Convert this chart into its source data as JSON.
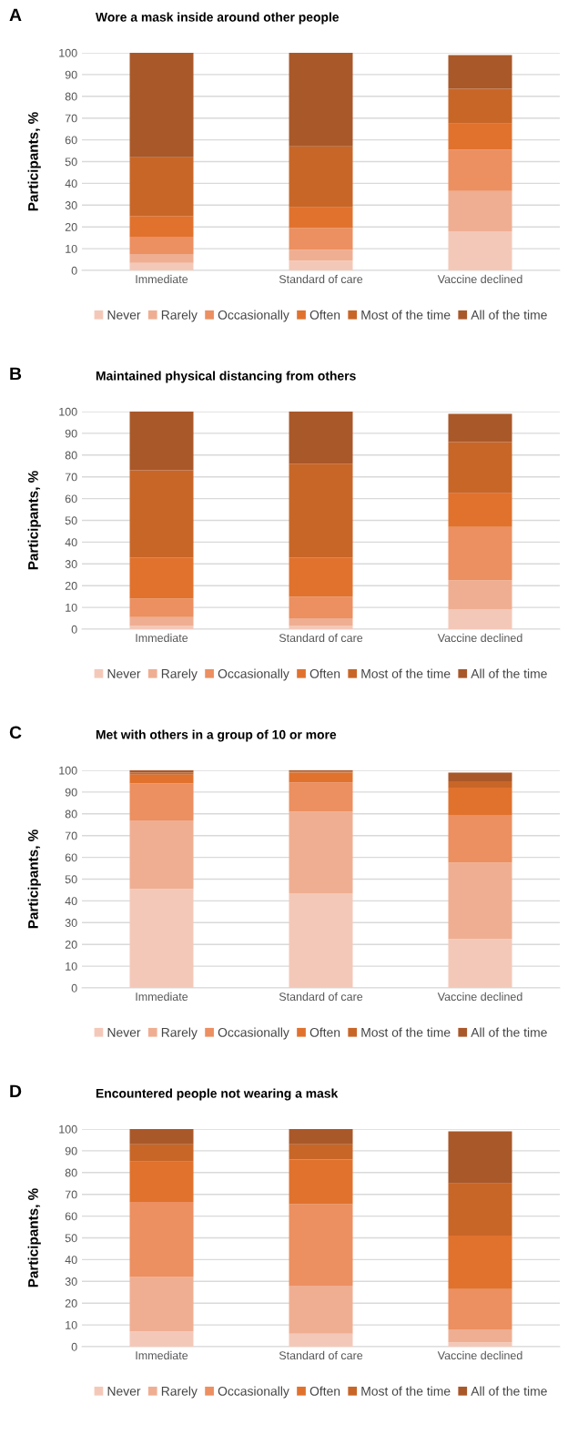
{
  "chart_data": [
    {
      "type": "bar",
      "stacked": true,
      "title": "Wore a mask inside around other people",
      "annotations": [
        "A"
      ],
      "ylabel": "Participants, %",
      "categories": [
        "Immediate",
        "Standard of care",
        "Vaccine declined"
      ],
      "ylim": [
        0,
        100
      ],
      "yticks": [
        0,
        10,
        20,
        30,
        40,
        50,
        60,
        70,
        80,
        90,
        100
      ],
      "grid": "y",
      "legend": "bottom",
      "series": [
        {
          "name": "Never",
          "color": "#f4c8b8",
          "values": [
            3.5,
            4.5,
            18
          ]
        },
        {
          "name": "Rarely",
          "color": "#efae92",
          "values": [
            4,
            5,
            18.5
          ]
        },
        {
          "name": "Occasionally",
          "color": "#ec8f61",
          "values": [
            8,
            10,
            19
          ]
        },
        {
          "name": "Often",
          "color": "#e0722e",
          "values": [
            9.5,
            9.5,
            12
          ]
        },
        {
          "name": "Most of the time",
          "color": "#c86628",
          "values": [
            27,
            28,
            16
          ]
        },
        {
          "name": "All of the time",
          "color": "#a9582a",
          "values": [
            48,
            43,
            15.5
          ]
        }
      ]
    },
    {
      "type": "bar",
      "stacked": true,
      "title": "Maintained physical distancing from others",
      "annotations": [
        "B"
      ],
      "ylabel": "Participants, %",
      "categories": [
        "Immediate",
        "Standard of care",
        "Vaccine declined"
      ],
      "ylim": [
        0,
        100
      ],
      "yticks": [
        0,
        10,
        20,
        30,
        40,
        50,
        60,
        70,
        80,
        90,
        100
      ],
      "grid": "y",
      "legend": "bottom",
      "series": [
        {
          "name": "Never",
          "color": "#f4c8b8",
          "values": [
            1.5,
            1.5,
            9
          ]
        },
        {
          "name": "Rarely",
          "color": "#efae92",
          "values": [
            4,
            3.5,
            13.5
          ]
        },
        {
          "name": "Occasionally",
          "color": "#ec8f61",
          "values": [
            8.5,
            10,
            24.5
          ]
        },
        {
          "name": "Often",
          "color": "#e0722e",
          "values": [
            19,
            18,
            15.5
          ]
        },
        {
          "name": "Most of the time",
          "color": "#c86628",
          "values": [
            40,
            43,
            23.5
          ]
        },
        {
          "name": "All of the time",
          "color": "#a9582a",
          "values": [
            27,
            24,
            13
          ]
        }
      ]
    },
    {
      "type": "bar",
      "stacked": true,
      "title": "Met with others in a group of 10 or more",
      "annotations": [
        "C"
      ],
      "ylabel": "Participants, %",
      "categories": [
        "Immediate",
        "Standard of care",
        "Vaccine declined"
      ],
      "ylim": [
        0,
        100
      ],
      "yticks": [
        0,
        10,
        20,
        30,
        40,
        50,
        60,
        70,
        80,
        90,
        100
      ],
      "grid": "y",
      "legend": "bottom",
      "series": [
        {
          "name": "Never",
          "color": "#f4c8b8",
          "values": [
            45.5,
            43.5,
            22.5
          ]
        },
        {
          "name": "Rarely",
          "color": "#efae92",
          "values": [
            31.5,
            37.5,
            35
          ]
        },
        {
          "name": "Occasionally",
          "color": "#ec8f61",
          "values": [
            17,
            13.5,
            22
          ]
        },
        {
          "name": "Often",
          "color": "#e0722e",
          "values": [
            4,
            4.5,
            12.5
          ]
        },
        {
          "name": "Most of the time",
          "color": "#c86628",
          "values": [
            1,
            0.5,
            3
          ]
        },
        {
          "name": "All of the time",
          "color": "#a9582a",
          "values": [
            1,
            0.5,
            4
          ]
        }
      ]
    },
    {
      "type": "bar",
      "stacked": true,
      "title": "Encountered people not wearing a mask",
      "annotations": [
        "D"
      ],
      "ylabel": "Participants, %",
      "categories": [
        "Immediate",
        "Standard of care",
        "Vaccine declined"
      ],
      "ylim": [
        0,
        100
      ],
      "yticks": [
        0,
        10,
        20,
        30,
        40,
        50,
        60,
        70,
        80,
        90,
        100
      ],
      "grid": "y",
      "legend": "bottom",
      "series": [
        {
          "name": "Never",
          "color": "#f4c8b8",
          "values": [
            7,
            6,
            2
          ]
        },
        {
          "name": "Rarely",
          "color": "#efae92",
          "values": [
            25,
            22,
            6
          ]
        },
        {
          "name": "Occasionally",
          "color": "#ec8f61",
          "values": [
            34.5,
            37.5,
            18.5
          ]
        },
        {
          "name": "Often",
          "color": "#e0722e",
          "values": [
            18.5,
            20.5,
            24.5
          ]
        },
        {
          "name": "Most of the time",
          "color": "#c86628",
          "values": [
            8,
            7,
            24
          ]
        },
        {
          "name": "All of the time",
          "color": "#a9582a",
          "values": [
            7,
            7,
            24
          ]
        }
      ]
    }
  ]
}
